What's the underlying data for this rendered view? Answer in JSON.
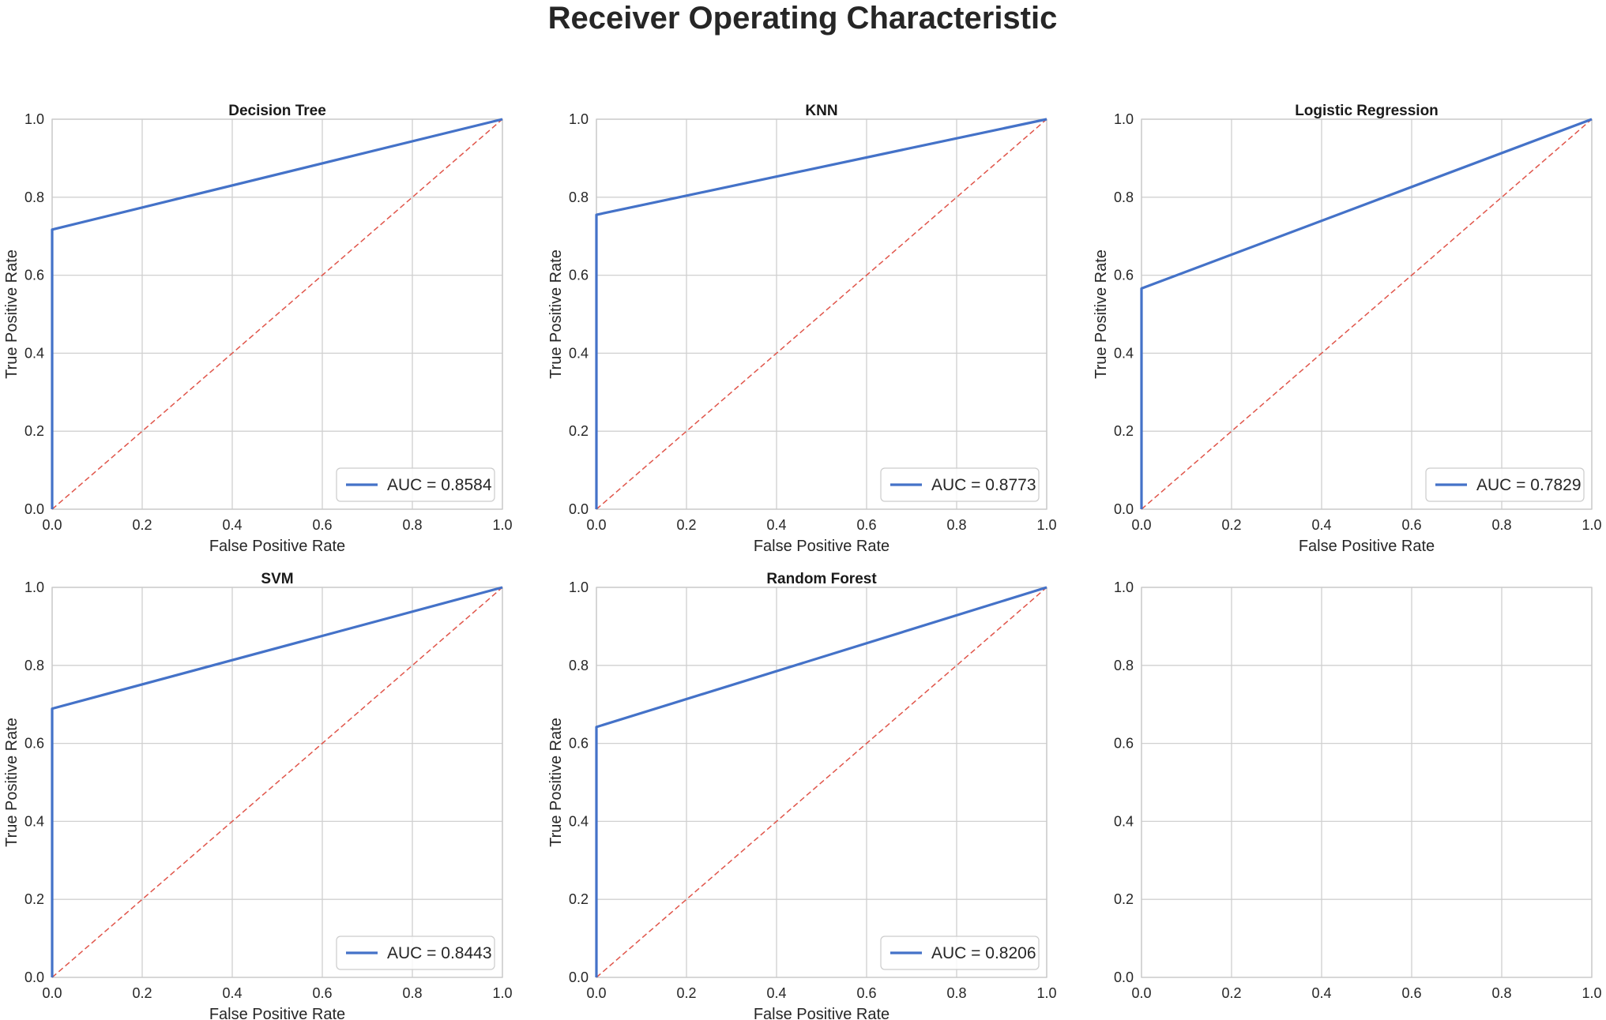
{
  "figure_title": "Receiver Operating Characteristic",
  "colors": {
    "roc_line": "#4472c8",
    "diagonal": "#e0554a",
    "grid": "#d0d0d0",
    "spine": "#c8c8c8",
    "text": "#262626"
  },
  "chart_data": [
    {
      "type": "line",
      "title": "Decision Tree",
      "xlabel": "False Positive Rate",
      "ylabel": "True Positive Rate",
      "xlim": [
        0,
        1
      ],
      "ylim": [
        0,
        1
      ],
      "xticks": [
        "0.0",
        "0.2",
        "0.4",
        "0.6",
        "0.8",
        "1.0"
      ],
      "yticks": [
        "0.0",
        "0.2",
        "0.4",
        "0.6",
        "0.8",
        "1.0"
      ],
      "grid": true,
      "legend": "lower-right",
      "series": [
        {
          "name": "AUC = 0.8584",
          "x": [
            0,
            0,
            1
          ],
          "y": [
            0,
            0.717,
            1
          ]
        }
      ],
      "diagonal": true
    },
    {
      "type": "line",
      "title": "KNN",
      "xlabel": "False Positive Rate",
      "ylabel": "True Positive Rate",
      "xlim": [
        0,
        1
      ],
      "ylim": [
        0,
        1
      ],
      "xticks": [
        "0.0",
        "0.2",
        "0.4",
        "0.6",
        "0.8",
        "1.0"
      ],
      "yticks": [
        "0.0",
        "0.2",
        "0.4",
        "0.6",
        "0.8",
        "1.0"
      ],
      "grid": true,
      "legend": "lower-right",
      "series": [
        {
          "name": "AUC = 0.8773",
          "x": [
            0,
            0,
            1
          ],
          "y": [
            0,
            0.755,
            1
          ]
        }
      ],
      "diagonal": true
    },
    {
      "type": "line",
      "title": "Logistic Regression",
      "xlabel": "False Positive Rate",
      "ylabel": "True Positive Rate",
      "xlim": [
        0,
        1
      ],
      "ylim": [
        0,
        1
      ],
      "xticks": [
        "0.0",
        "0.2",
        "0.4",
        "0.6",
        "0.8",
        "1.0"
      ],
      "yticks": [
        "0.0",
        "0.2",
        "0.4",
        "0.6",
        "0.8",
        "1.0"
      ],
      "grid": true,
      "legend": "lower-right",
      "series": [
        {
          "name": "AUC = 0.7829",
          "x": [
            0,
            0,
            1
          ],
          "y": [
            0,
            0.566,
            1
          ]
        }
      ],
      "diagonal": true
    },
    {
      "type": "line",
      "title": "SVM",
      "xlabel": "False Positive Rate",
      "ylabel": "True Positive Rate",
      "xlim": [
        0,
        1
      ],
      "ylim": [
        0,
        1
      ],
      "xticks": [
        "0.0",
        "0.2",
        "0.4",
        "0.6",
        "0.8",
        "1.0"
      ],
      "yticks": [
        "0.0",
        "0.2",
        "0.4",
        "0.6",
        "0.8",
        "1.0"
      ],
      "grid": true,
      "legend": "lower-right",
      "series": [
        {
          "name": "AUC = 0.8443",
          "x": [
            0,
            0,
            1
          ],
          "y": [
            0,
            0.689,
            1
          ]
        }
      ],
      "diagonal": true
    },
    {
      "type": "line",
      "title": "Random Forest",
      "xlabel": "False Positive Rate",
      "ylabel": "True Positive Rate",
      "xlim": [
        0,
        1
      ],
      "ylim": [
        0,
        1
      ],
      "xticks": [
        "0.0",
        "0.2",
        "0.4",
        "0.6",
        "0.8",
        "1.0"
      ],
      "yticks": [
        "0.0",
        "0.2",
        "0.4",
        "0.6",
        "0.8",
        "1.0"
      ],
      "grid": true,
      "legend": "lower-right",
      "series": [
        {
          "name": "AUC = 0.8206",
          "x": [
            0,
            0,
            1
          ],
          "y": [
            0,
            0.642,
            1
          ]
        }
      ],
      "diagonal": true
    },
    {
      "type": "line",
      "title": "",
      "xlabel": "",
      "ylabel": "",
      "xlim": [
        0,
        1
      ],
      "ylim": [
        0,
        1
      ],
      "xticks": [
        "0.0",
        "0.2",
        "0.4",
        "0.6",
        "0.8",
        "1.0"
      ],
      "yticks": [
        "0.0",
        "0.2",
        "0.4",
        "0.6",
        "0.8",
        "1.0"
      ],
      "grid": true,
      "series": [],
      "diagonal": false
    }
  ]
}
